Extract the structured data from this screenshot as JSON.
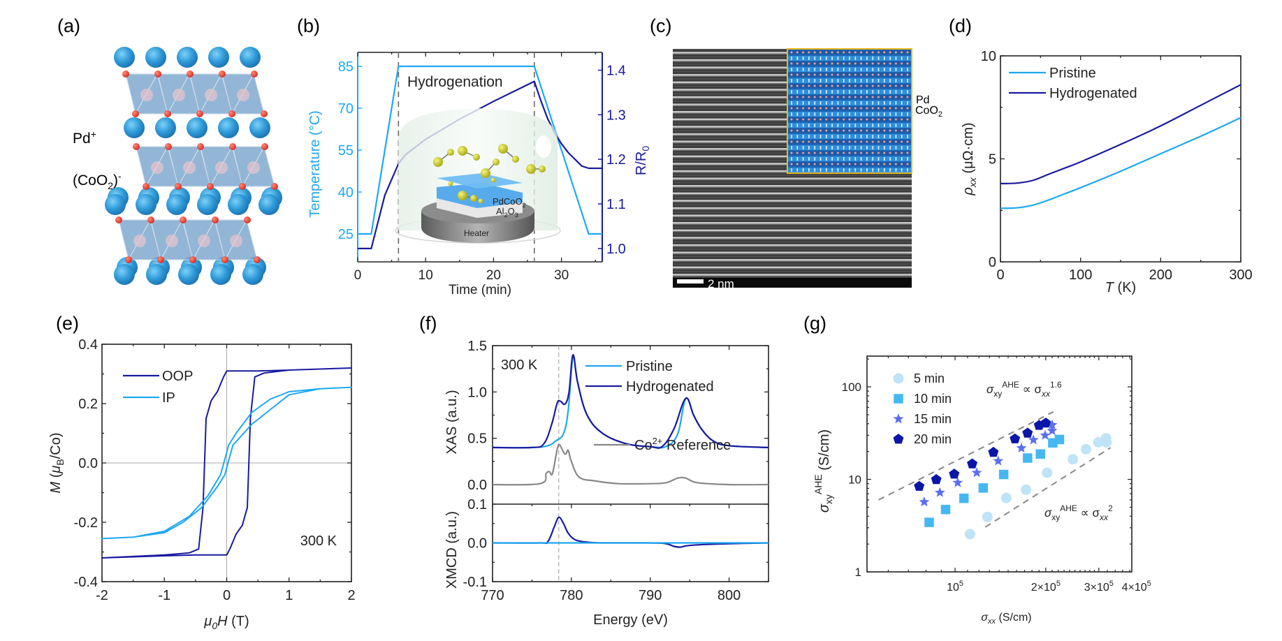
{
  "colors": {
    "light": "#1ea8f0",
    "dark": "#1a1a9e",
    "gray": "#888888",
    "axis": "#222222",
    "pt5": "#bfe3f7",
    "pt10": "#45b8f2",
    "pt15": "#5a6ef0",
    "pt20": "#0a16a8"
  },
  "panels": {
    "a": {
      "label": "(a)",
      "pd_label": "Pd",
      "pd_sup": "+",
      "coo2_label": "(CoO",
      "coo2_sub": "2",
      "coo2_close": ")",
      "coo2_sup": "-"
    },
    "b": {
      "label": "(b)",
      "inset_title": "Hydrogenation",
      "inset_film": "PdCoO",
      "inset_film_sub": "2",
      "inset_substrate": "Al",
      "inset_substrate_sub1": "2",
      "inset_substrate_o": "O",
      "inset_substrate_sub2": "3",
      "inset_heater": "Heater",
      "h_atom": "H"
    },
    "c": {
      "label": "(c)",
      "scale_bar": "2 nm",
      "inset_pd": "Pd",
      "inset_coo2": "CoO",
      "inset_coo2_sub": "2"
    },
    "d": {
      "label": "(d)"
    },
    "e": {
      "label": "(e)",
      "annotation": "300 K"
    },
    "f": {
      "label": "(f)",
      "annotation": "300 K"
    },
    "g": {
      "label": "(g)"
    }
  },
  "chart_data": [
    {
      "id": "b",
      "type": "line",
      "xlabel": "Time (min)",
      "ylabel": "Temperature (°C)",
      "y2label": "R/R0",
      "xlim": [
        0,
        36
      ],
      "ylim": [
        15,
        90
      ],
      "y2lim": [
        0.97,
        1.44
      ],
      "xticks": [
        0,
        10,
        20,
        30
      ],
      "yticks": [
        25,
        40,
        55,
        70,
        85
      ],
      "y2ticks": [
        "1.0",
        "1.1",
        "1.2",
        "1.3",
        "1.4"
      ],
      "vlines": [
        6,
        26
      ],
      "series": [
        {
          "name": "Temperature",
          "axis": "left",
          "color": "light",
          "x": [
            0,
            2,
            6,
            26,
            34,
            36
          ],
          "y": [
            25,
            25,
            85,
            85,
            25,
            25
          ]
        },
        {
          "name": "R/R0",
          "axis": "right",
          "color": "dark",
          "x": [
            0,
            2,
            4,
            6,
            7,
            10,
            15,
            20,
            24,
            26,
            27,
            28,
            29,
            30,
            31,
            32,
            33,
            34,
            36
          ],
          "y": [
            1.0,
            1.0,
            1.12,
            1.19,
            1.21,
            1.245,
            1.29,
            1.33,
            1.36,
            1.375,
            1.33,
            1.29,
            1.26,
            1.235,
            1.215,
            1.2,
            1.185,
            1.18,
            1.18
          ]
        }
      ]
    },
    {
      "id": "d",
      "type": "line",
      "xlabel": "T (K)",
      "ylabel": "ρxx (μΩ·cm)",
      "xlim": [
        0,
        300
      ],
      "ylim": [
        0,
        10
      ],
      "xticks": [
        0,
        100,
        200,
        300
      ],
      "yticks": [
        0,
        5,
        10
      ],
      "legend": "top-left",
      "series": [
        {
          "name": "Pristine",
          "color": "light",
          "x": [
            0,
            20,
            40,
            60,
            80,
            100,
            150,
            200,
            250,
            300
          ],
          "y": [
            2.6,
            2.62,
            2.75,
            3.0,
            3.3,
            3.6,
            4.4,
            5.25,
            6.1,
            7.0
          ]
        },
        {
          "name": "Hydrogenated",
          "color": "dark",
          "x": [
            0,
            20,
            40,
            60,
            80,
            100,
            150,
            200,
            250,
            300
          ],
          "y": [
            3.8,
            3.82,
            3.95,
            4.25,
            4.55,
            4.85,
            5.7,
            6.6,
            7.6,
            8.6
          ]
        }
      ]
    },
    {
      "id": "e",
      "type": "line",
      "xlabel": "μ0H (T)",
      "ylabel": "M (μB/Co)",
      "xlim": [
        -2,
        2
      ],
      "ylim": [
        -0.4,
        0.4
      ],
      "xticks": [
        "-2",
        "-1",
        "0",
        "1",
        "2"
      ],
      "yticks": [
        "-0.4",
        "-0.2",
        "0.0",
        "0.2",
        "0.4"
      ],
      "legend": "top-left",
      "series": [
        {
          "name": "OOP",
          "color": "dark",
          "x": [
            -2,
            -1,
            -0.6,
            -0.45,
            -0.38,
            -0.33,
            -0.25,
            -0.15,
            -0.05,
            0.0,
            0.5,
            1,
            2,
            2,
            1,
            0.6,
            0.45,
            0.38,
            0.33,
            0.25,
            0.15,
            0.05,
            0.0,
            -0.5,
            -1,
            -2
          ],
          "y": [
            -0.32,
            -0.31,
            -0.303,
            -0.29,
            -0.15,
            0.15,
            0.21,
            0.24,
            0.29,
            0.31,
            0.31,
            0.313,
            0.32,
            0.32,
            0.313,
            0.303,
            0.29,
            0.15,
            -0.15,
            -0.21,
            -0.24,
            -0.29,
            -0.31,
            -0.31,
            -0.313,
            -0.32
          ]
        },
        {
          "name": "IP",
          "color": "light",
          "x": [
            -2,
            -1.5,
            -1,
            -0.6,
            -0.3,
            -0.1,
            -0.02,
            0.03,
            0.15,
            0.4,
            0.7,
            1,
            1.5,
            2,
            2,
            1.5,
            1,
            0.7,
            0.4,
            0.1,
            0.02,
            -0.03,
            -0.15,
            -0.4,
            -0.7,
            -1,
            -1.5,
            -2
          ],
          "y": [
            -0.255,
            -0.25,
            -0.23,
            -0.18,
            -0.11,
            -0.04,
            0.02,
            0.06,
            0.1,
            0.17,
            0.215,
            0.24,
            0.25,
            0.255,
            0.255,
            0.25,
            0.23,
            0.18,
            0.13,
            0.06,
            0.0,
            -0.04,
            -0.08,
            -0.15,
            -0.2,
            -0.235,
            -0.25,
            -0.255
          ]
        }
      ],
      "annotation": "300 K"
    },
    {
      "id": "f",
      "type": "line",
      "xlabel": "Energy (eV)",
      "ylabel_top": "XAS (a.u.)",
      "ylabel_bottom": "XMCD (a.u.)",
      "xlim": [
        770,
        805
      ],
      "ylim_top": [
        0,
        1.5
      ],
      "ylim_bottom": [
        -0.1,
        0.1
      ],
      "xticks": [
        770,
        780,
        790,
        800
      ],
      "yticks_top": [
        "0.0",
        "0.5",
        "1.0",
        "1.5"
      ],
      "yticks_bottom": [
        "-0.1",
        "0.0",
        "0.1"
      ],
      "vline": 778.4,
      "series_top": [
        {
          "name": "Pristine",
          "color": "light",
          "x": [
            770,
            775,
            777,
            778,
            779,
            779.6,
            780.2,
            780.8,
            782,
            784,
            787,
            790,
            792,
            793.5,
            794.5,
            795.5,
            796.5,
            798,
            800,
            805
          ],
          "y": [
            0.4,
            0.4,
            0.42,
            0.47,
            0.55,
            0.8,
            1.38,
            1.1,
            0.75,
            0.55,
            0.44,
            0.41,
            0.41,
            0.55,
            0.93,
            0.75,
            0.6,
            0.47,
            0.42,
            0.4
          ]
        },
        {
          "name": "Hydrogenated",
          "color": "dark",
          "x": [
            770,
            775,
            776.5,
            777.5,
            778.2,
            778.6,
            779.2,
            779.7,
            780.2,
            780.8,
            782,
            784,
            787,
            790,
            791.5,
            793,
            794.5,
            795.5,
            796.5,
            798,
            800,
            805
          ],
          "y": [
            0.4,
            0.4,
            0.44,
            0.65,
            0.88,
            0.9,
            0.87,
            1.0,
            1.4,
            1.1,
            0.75,
            0.55,
            0.44,
            0.41,
            0.41,
            0.6,
            0.93,
            0.75,
            0.6,
            0.47,
            0.42,
            0.4
          ]
        },
        {
          "name": "Co2+ Reference",
          "color": "gray",
          "x": [
            770,
            776,
            776.8,
            777.2,
            777.6,
            778.2,
            778.5,
            779,
            779.3,
            779.6,
            780,
            781,
            783,
            786,
            790,
            792,
            793.5,
            794.5,
            796,
            800,
            805
          ],
          "y": [
            0.0,
            0.01,
            0.12,
            0.14,
            0.12,
            0.38,
            0.43,
            0.35,
            0.33,
            0.37,
            0.25,
            0.08,
            0.04,
            0.01,
            0.01,
            0.02,
            0.07,
            0.07,
            0.02,
            0.0,
            0.0
          ]
        }
      ],
      "series_bottom": [
        {
          "name": "XMCD Hydrogenated",
          "color": "dark",
          "x": [
            770,
            776,
            777,
            777.8,
            778.4,
            779,
            779.6,
            780.5,
            782,
            784,
            790,
            792,
            793,
            793.8,
            794.5,
            796,
            800,
            805
          ],
          "y": [
            0.0,
            0.0,
            0.003,
            0.04,
            0.066,
            0.05,
            0.025,
            0.008,
            0.002,
            0.0,
            0.0,
            -0.002,
            -0.009,
            -0.011,
            -0.008,
            -0.005,
            -0.002,
            0.0
          ]
        },
        {
          "name": "XMCD Pristine",
          "color": "light",
          "x": [
            770,
            805
          ],
          "y": [
            0.0,
            0.0
          ]
        }
      ],
      "legend": [
        {
          "name": "Pristine",
          "color": "light"
        },
        {
          "name": "Hydrogenated",
          "color": "dark"
        },
        {
          "name": "Co",
          "sup": "2+",
          "suffix": " Reference",
          "color": "gray"
        }
      ],
      "annotation": "300 K"
    },
    {
      "id": "g",
      "type": "scatter",
      "xscale": "log",
      "yscale": "log",
      "xlabel": "σxx (S/cm)",
      "ylabel": "σxy AHE (S/cm)",
      "xlim": [
        51000,
        386000
      ],
      "ylim": [
        1,
        215
      ],
      "xticks": [
        {
          "v": 100000,
          "base": "10",
          "exp": "5"
        },
        {
          "v": 200000,
          "base": "2×10",
          "exp": "5"
        },
        {
          "v": 300000,
          "base": "3×10",
          "exp": "5"
        },
        {
          "v": 400000,
          "base": "4×10",
          "exp": "5"
        }
      ],
      "yticks": [
        1,
        10,
        100
      ],
      "legend": "top-left",
      "series": [
        {
          "name": "5 min",
          "marker": "circle",
          "color": "pt5",
          "x": [
            112000,
            128000,
            148000,
            172000,
            202000,
            246000,
            272000,
            299000,
            317000,
            318000
          ],
          "y": [
            2.56,
            3.92,
            6.3,
            7.74,
            11.8,
            16.5,
            21.2,
            25.2,
            27.8,
            25.2
          ]
        },
        {
          "name": "10 min",
          "marker": "square",
          "color": "pt10",
          "x": [
            82000,
            93000,
            107000,
            124000,
            145000,
            174000,
            192000,
            211000,
            222000
          ],
          "y": [
            3.43,
            4.72,
            6.24,
            8.07,
            11.3,
            17.0,
            18.8,
            24.8,
            27.0
          ]
        },
        {
          "name": "15 min",
          "marker": "star",
          "color": "pt15",
          "x": [
            79000,
            89000,
            102000,
            118000,
            139000,
            166000,
            182000,
            199000,
            210000,
            210000
          ],
          "y": [
            5.7,
            7.2,
            9.2,
            11.8,
            15.8,
            21.8,
            26.7,
            29.9,
            33.5,
            38.8
          ]
        },
        {
          "name": "20 min",
          "marker": "pentagon",
          "color": "pt20",
          "x": [
            76000,
            86600,
            99300,
            114000,
            134000,
            158000,
            174000,
            190000,
            200000
          ],
          "y": [
            8.4,
            9.95,
            11.4,
            14.7,
            19.6,
            27.4,
            31.6,
            38.3,
            40.6
          ]
        }
      ],
      "fit_lines": [
        {
          "label_base": "σ",
          "label_sub": "xy",
          "label_sup": "AHE",
          "label_prop": " ∝ σ",
          "label_sub2": "xx",
          "label_exp": "1.6",
          "x": [
            55700,
            212000
          ],
          "y": [
            6.0,
            53.7
          ]
        },
        {
          "label_base": "σ",
          "label_sub": "xy",
          "label_sup": "AHE",
          "label_prop": " ∝ σ",
          "label_sub2": "xx",
          "label_exp": "2",
          "x": [
            126000,
            328000
          ],
          "y": [
            3.05,
            22
          ]
        }
      ]
    }
  ]
}
